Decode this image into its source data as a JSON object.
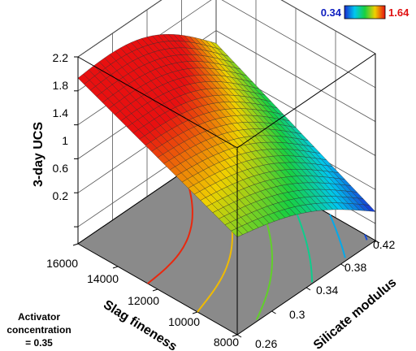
{
  "chart_data": {
    "type": "surface3d",
    "zlabel": "3-day UCS",
    "xlabel": "Slag fineness",
    "ylabel": "Silicate modulus",
    "note_lines": [
      "Activator",
      "concentration",
      "= 0.35"
    ],
    "x_ticks": [
      "16000",
      "14000",
      "12000",
      "10000",
      "8000"
    ],
    "y_ticks": [
      "0.26",
      "0.3",
      "0.34",
      "0.38",
      "0.42"
    ],
    "z_ticks": [
      "0.2",
      "0.6",
      "1",
      "1.4",
      "1.8",
      "2.2"
    ],
    "xlim": [
      8000,
      16000
    ],
    "ylim": [
      0.26,
      0.42
    ],
    "zlim": [
      0,
      2.2
    ],
    "colorbar": {
      "min_label": "0.34",
      "max_label": "1.64",
      "min": 0.34,
      "max": 1.64
    },
    "surface_corners": {
      "x16000_y0.26": 1.95,
      "x16000_y0.42": 1.25,
      "x8000_y0.26": 1.15,
      "x8000_y0.42": 0.34
    },
    "colors": {
      "floor": "#8a8a8a",
      "mesh": "#2a2a2a"
    }
  }
}
